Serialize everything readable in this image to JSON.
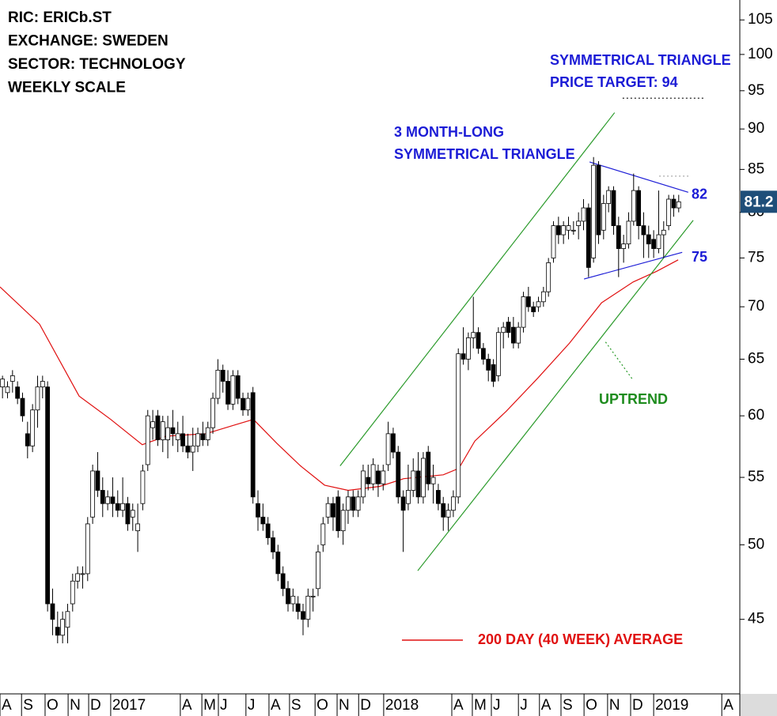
{
  "chart_data": {
    "type": "candlestick",
    "header_lines": [
      "RIC: ERICb.ST",
      "EXCHANGE: SWEDEN",
      "SECTOR: TECHNOLOGY",
      "WEEKLY SCALE"
    ],
    "annotations": [
      {
        "lines": [
          "SYMMETRICAL TRIANGLE",
          "PRICE TARGET: 94"
        ],
        "color": "#1c1cd6"
      },
      {
        "lines": [
          "3 MONTH-LONG",
          "SYMMETRICAL TRIANGLE"
        ],
        "color": "#1c1cd6"
      },
      {
        "lines": [
          "UPTREND"
        ],
        "color": "#1e8c1e"
      }
    ],
    "level_labels": [
      82,
      75
    ],
    "level_color": "#1c1cd6",
    "ylim": [
      40.5,
      108
    ],
    "log_scale": true,
    "yticks": [
      45,
      50,
      55,
      60,
      65,
      70,
      75,
      80,
      85,
      90,
      95,
      100,
      105
    ],
    "xlim": [
      0,
      147.7
    ],
    "xticks": [
      {
        "value": 0,
        "label": "A"
      },
      {
        "value": 4.3,
        "label": "S"
      },
      {
        "value": 9.0,
        "label": "O"
      },
      {
        "value": 13.6,
        "label": "N"
      },
      {
        "value": 17.7,
        "label": "D"
      },
      {
        "value": 22.1,
        "label": "2017"
      },
      {
        "value": 36.0,
        "label": "A"
      },
      {
        "value": 40.3,
        "label": "M"
      },
      {
        "value": 43.6,
        "label": "J"
      },
      {
        "value": 49.1,
        "label": "J"
      },
      {
        "value": 53.7,
        "label": "A"
      },
      {
        "value": 57.8,
        "label": "S"
      },
      {
        "value": 62.9,
        "label": "O"
      },
      {
        "value": 67.3,
        "label": "N"
      },
      {
        "value": 71.6,
        "label": "D"
      },
      {
        "value": 76.6,
        "label": "2018"
      },
      {
        "value": 90.2,
        "label": "A"
      },
      {
        "value": 94.3,
        "label": "M"
      },
      {
        "value": 98.1,
        "label": "J"
      },
      {
        "value": 103.5,
        "label": "J"
      },
      {
        "value": 107.7,
        "label": "A"
      },
      {
        "value": 112.0,
        "label": "S"
      },
      {
        "value": 116.6,
        "label": "O"
      },
      {
        "value": 121.3,
        "label": "N"
      },
      {
        "value": 125.9,
        "label": "D"
      },
      {
        "value": 130.5,
        "label": "2019"
      },
      {
        "value": 144.1,
        "label": "A"
      }
    ],
    "candles": {
      "open": [
        62.5,
        62,
        63,
        62.5,
        61.5,
        58.5,
        57.5,
        60.5,
        62.5,
        62.5,
        46,
        44.5,
        44,
        44.5,
        46,
        47.5,
        48,
        48,
        52,
        55.5,
        54,
        53,
        53.5,
        53,
        52.5,
        53,
        52,
        51,
        53,
        56,
        59,
        60,
        58,
        58,
        59,
        58,
        58.5,
        57.5,
        57,
        57.5,
        58.5,
        58,
        59,
        61.5,
        64,
        63,
        61,
        63.5,
        61.5,
        60.5,
        62,
        53,
        52,
        51.5,
        50.5,
        49.5,
        48,
        47,
        46,
        46,
        45.5,
        45,
        46.5,
        47,
        50,
        52,
        53,
        53.5,
        51,
        52.5,
        53.5,
        52.5,
        53.5,
        55,
        54.5,
        55.5,
        54.5,
        56,
        58.5,
        57,
        53.5,
        53,
        54,
        55.5,
        53.5,
        57,
        54.5,
        54,
        53,
        52,
        52.5,
        53.5,
        65.5,
        65,
        67,
        67.5,
        66,
        65,
        64.5,
        63.5,
        67.5,
        68.5,
        68,
        66.5,
        68,
        71,
        70,
        70,
        70.5,
        71.5,
        75,
        78.5,
        77.5,
        78,
        78,
        78.5,
        79,
        80.5,
        75,
        85.5,
        78,
        81,
        82.5,
        78.5,
        76,
        76.5,
        79,
        82.5,
        78.5,
        77.5,
        77,
        76,
        77.5,
        78.5,
        81.5,
        80.5
      ],
      "high": [
        63.5,
        63,
        64,
        63,
        62,
        59.5,
        61,
        63.5,
        63.5,
        63,
        47,
        45.5,
        45.5,
        46,
        48,
        48.5,
        48.5,
        52,
        56,
        57,
        55,
        54,
        55,
        54,
        55,
        53.5,
        53,
        53,
        56,
        60.5,
        60.5,
        60.5,
        60,
        60,
        60.5,
        59.5,
        60,
        58.5,
        59,
        59,
        59.5,
        59.5,
        62,
        65,
        64.5,
        64,
        64,
        64,
        62,
        62,
        62.5,
        54,
        53,
        52,
        51,
        50,
        48.5,
        47.5,
        47,
        46.5,
        46,
        47,
        47,
        50,
        52,
        53.5,
        53.5,
        54,
        53,
        54,
        54,
        54,
        56,
        56,
        56.5,
        56,
        56,
        59.5,
        59,
        57.5,
        54,
        56,
        56.5,
        57,
        57,
        57.5,
        56,
        54.5,
        53.5,
        53,
        54,
        66,
        68,
        67.5,
        71,
        68,
        66.5,
        65.5,
        65,
        68,
        68.5,
        69,
        69,
        68.5,
        71.5,
        72,
        70.5,
        71,
        72,
        75,
        79,
        79.5,
        79,
        79.5,
        79,
        80,
        81.5,
        81,
        86.5,
        86,
        82,
        83,
        83,
        79.5,
        77.5,
        80,
        84.5,
        83,
        80,
        78.5,
        78,
        82.5,
        79,
        82,
        82,
        82
      ],
      "low": [
        61.5,
        61.5,
        62,
        61,
        59.5,
        56.5,
        57,
        59,
        61.5,
        45.5,
        44,
        43.5,
        43.5,
        43.5,
        45.5,
        47,
        47,
        47.5,
        51.5,
        53.5,
        52,
        52.5,
        52,
        52,
        52,
        51,
        51,
        49.5,
        52.5,
        55.5,
        58,
        57.5,
        57,
        56.5,
        57.5,
        57,
        57,
        56.5,
        55.5,
        57,
        57.5,
        57.5,
        58.5,
        61,
        62,
        60.5,
        60.5,
        61,
        60,
        60,
        53,
        51,
        51,
        50,
        49,
        47.5,
        46.5,
        45.5,
        45.5,
        45,
        44,
        44.5,
        45.5,
        46.5,
        49.5,
        51.5,
        51,
        50.5,
        50,
        51.5,
        52,
        52,
        53,
        54,
        54,
        53.5,
        54,
        55.5,
        56.5,
        53,
        49.5,
        52.5,
        53.5,
        53,
        53,
        54,
        53,
        52.5,
        51,
        51,
        52,
        53,
        64.5,
        64,
        66,
        65.5,
        64.5,
        63,
        62.5,
        63,
        66,
        67,
        66,
        66,
        67.5,
        69.5,
        69,
        69.5,
        70,
        71,
        74.5,
        76.5,
        76.5,
        77,
        77.5,
        77,
        78,
        73,
        74.5,
        76.5,
        77,
        80,
        77.5,
        73,
        74.5,
        76,
        78.5,
        77,
        75,
        75,
        75,
        75.5,
        75,
        78,
        79.5,
        80
      ],
      "close": [
        63.2,
        62.5,
        63.5,
        61.5,
        60,
        57.5,
        60.5,
        62.5,
        63,
        46,
        45,
        44,
        45,
        45.5,
        47.5,
        48,
        48,
        51.5,
        55.5,
        54,
        53,
        53.5,
        53,
        52.5,
        53,
        51.5,
        52.5,
        51.5,
        55.5,
        60,
        59.5,
        58,
        59.5,
        59,
        58.5,
        58.5,
        57.5,
        57,
        57.5,
        58.5,
        58,
        59,
        61.5,
        64,
        63,
        61,
        63.5,
        61.5,
        60.5,
        61.5,
        53.5,
        52,
        51.5,
        50.5,
        49.5,
        48,
        47,
        46,
        46.5,
        45.5,
        45,
        46.5,
        46.5,
        49.5,
        51.5,
        53,
        52,
        51,
        52.5,
        53.5,
        52.5,
        53.5,
        55.5,
        54.5,
        56,
        54.5,
        55.5,
        58.5,
        57,
        53.5,
        52.5,
        54,
        55.5,
        53.5,
        56.5,
        54.5,
        55,
        53,
        52,
        52.5,
        53.5,
        65.5,
        65,
        67,
        67.5,
        66,
        65,
        64,
        63,
        67.5,
        68,
        67.5,
        66.5,
        68,
        71,
        70,
        69.5,
        70.5,
        71.5,
        74.5,
        78.5,
        77.5,
        78.5,
        78.5,
        78,
        79,
        80.5,
        74,
        85.5,
        77.5,
        81,
        82.5,
        78.5,
        76,
        76.5,
        79,
        82.5,
        78.5,
        77.5,
        76.5,
        76,
        77.5,
        78,
        81.5,
        80.5,
        81.2
      ]
    },
    "moving_average": {
      "name": "200 DAY (40 WEEK) AVERAGE",
      "color": "#e01010",
      "x": [
        0,
        7.9,
        15.8,
        22.1,
        28.4,
        33.2,
        41.1,
        47.4,
        50.6,
        55.3,
        60,
        64.8,
        69.5,
        75.8,
        80.6,
        88.5,
        91.6,
        94.8,
        101.1,
        107.4,
        113.7,
        120.1,
        126.4,
        131.1,
        135.4
      ],
      "values": [
        72.0,
        68.3,
        61.7,
        59.7,
        57.6,
        58.3,
        58.5,
        59.3,
        59.7,
        57.7,
        55.9,
        54.4,
        54.0,
        54.3,
        54.9,
        55.2,
        55.7,
        57.9,
        60.4,
        63.3,
        66.5,
        70.4,
        72.5,
        73.6,
        74.8
      ]
    },
    "trend_lines": [
      {
        "color": "#2a9a2a",
        "x": [
          67.9,
          122.7
        ],
        "y": [
          55.9,
          92.1
        ],
        "dashed": false
      },
      {
        "color": "#2a9a2a",
        "x": [
          83.4,
          138.4
        ],
        "y": [
          48.2,
          79.1
        ],
        "dashed": false
      },
      {
        "color": "#2a9a2a",
        "x": [
          120.9,
          126.4
        ],
        "y": [
          66.6,
          63.1
        ],
        "dashed": true
      },
      {
        "color": "#1c1cd6",
        "x": [
          117.7,
          137.4
        ],
        "y": [
          85.9,
          82.3
        ],
        "dashed": false
      },
      {
        "color": "#1c1cd6",
        "x": [
          116.6,
          136.2
        ],
        "y": [
          72.8,
          75.6
        ],
        "dashed": false
      },
      {
        "color": "#222222",
        "x": [
          124.3,
          140.6
        ],
        "y": [
          94,
          94
        ],
        "dashed": true
      },
      {
        "color": "#aaaaaa",
        "x": [
          131.6,
          137.8
        ],
        "y": [
          84.2,
          84.2
        ],
        "dashed": true
      }
    ],
    "up_color": "#ffffff",
    "down_color": "#000000",
    "price_tag_color": "#1f4e79"
  }
}
